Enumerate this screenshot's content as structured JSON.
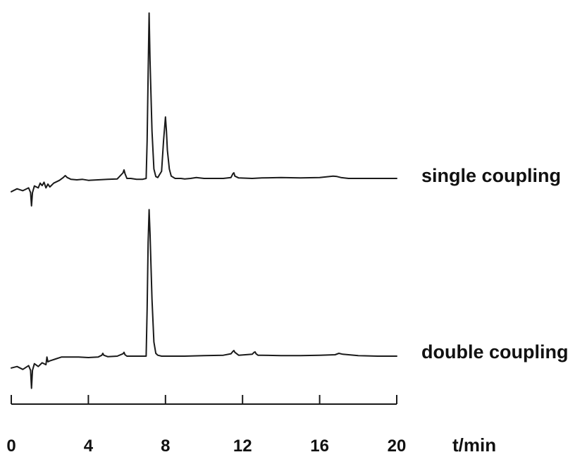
{
  "chart_data": {
    "type": "line",
    "xlabel": "t/min",
    "xlim": [
      0,
      20
    ],
    "xticks": [
      0,
      4,
      8,
      12,
      16,
      20
    ],
    "grid": false,
    "legend": "none",
    "series": [
      {
        "name": "single coupling",
        "x": [
          0,
          0.3,
          0.6,
          0.9,
          1.0,
          1.05,
          1.1,
          1.2,
          1.4,
          1.5,
          1.6,
          1.7,
          1.8,
          1.9,
          2.0,
          2.2,
          2.5,
          2.7,
          2.8,
          2.9,
          3.1,
          3.4,
          3.7,
          4.0,
          4.5,
          5.0,
          5.5,
          5.8,
          5.85,
          5.9,
          6.0,
          6.2,
          6.5,
          6.8,
          7.0,
          7.05,
          7.1,
          7.15,
          7.2,
          7.3,
          7.4,
          7.5,
          7.6,
          7.8,
          7.9,
          8.0,
          8.05,
          8.1,
          8.2,
          8.3,
          8.5,
          8.8,
          9.0,
          9.3,
          9.6,
          10.0,
          10.5,
          11.0,
          11.4,
          11.5,
          11.55,
          11.6,
          11.8,
          12.5,
          13.0,
          14.0,
          15.0,
          16.0,
          16.7,
          16.9,
          17.1,
          17.5,
          18.0,
          19.0,
          20.0
        ],
        "y": [
          -0.28,
          -0.22,
          -0.26,
          -0.2,
          -0.3,
          -0.58,
          -0.3,
          -0.16,
          -0.2,
          -0.1,
          -0.15,
          -0.08,
          -0.2,
          -0.12,
          -0.18,
          -0.1,
          -0.04,
          0.02,
          0.06,
          0.02,
          -0.02,
          -0.03,
          -0.02,
          -0.04,
          -0.03,
          -0.02,
          -0.01,
          0.12,
          0.18,
          0.1,
          0.0,
          0.0,
          -0.02,
          -0.02,
          0.0,
          0.8,
          2.2,
          3.5,
          2.5,
          1.0,
          0.2,
          0.04,
          0.02,
          0.15,
          0.8,
          1.3,
          1.0,
          0.6,
          0.2,
          0.05,
          0.0,
          0.0,
          -0.01,
          0.0,
          0.02,
          0.0,
          0.0,
          0.0,
          0.02,
          0.1,
          0.12,
          0.05,
          0.01,
          0.0,
          0.01,
          0.02,
          0.01,
          0.02,
          0.05,
          0.04,
          0.02,
          0.0,
          0.0,
          0.0,
          0.0
        ]
      },
      {
        "name": "double coupling",
        "x": [
          0,
          0.3,
          0.6,
          0.9,
          1.0,
          1.05,
          1.1,
          1.2,
          1.4,
          1.6,
          1.8,
          1.85,
          1.9,
          2.0,
          2.3,
          2.6,
          3.0,
          3.5,
          4.0,
          4.5,
          4.7,
          4.75,
          4.8,
          5.0,
          5.5,
          5.8,
          5.85,
          5.9,
          6.0,
          6.5,
          7.0,
          7.05,
          7.1,
          7.15,
          7.2,
          7.3,
          7.4,
          7.5,
          7.6,
          7.8,
          8.0,
          8.5,
          9.0,
          10.0,
          11.0,
          11.4,
          11.5,
          11.55,
          11.6,
          11.8,
          12.5,
          12.6,
          12.65,
          12.7,
          12.8,
          13.0,
          14.0,
          15.0,
          16.0,
          16.8,
          17.0,
          17.2,
          18.0,
          19.0,
          20.0
        ],
        "y": [
          -0.25,
          -0.22,
          -0.28,
          -0.2,
          -0.3,
          -0.68,
          -0.3,
          -0.16,
          -0.22,
          -0.14,
          -0.18,
          -0.02,
          -0.12,
          -0.1,
          -0.06,
          -0.02,
          -0.02,
          -0.02,
          -0.03,
          -0.02,
          0.02,
          0.06,
          0.02,
          -0.01,
          0.0,
          0.05,
          0.08,
          0.03,
          0.0,
          0.0,
          0.0,
          1.0,
          2.4,
          3.1,
          2.6,
          1.2,
          0.3,
          0.06,
          0.02,
          0.0,
          0.0,
          0.0,
          0.0,
          0.01,
          0.02,
          0.05,
          0.1,
          0.12,
          0.08,
          0.02,
          0.04,
          0.08,
          0.09,
          0.05,
          0.02,
          0.02,
          0.01,
          0.01,
          0.02,
          0.03,
          0.06,
          0.04,
          0.01,
          0.0,
          0.0
        ]
      }
    ]
  }
}
